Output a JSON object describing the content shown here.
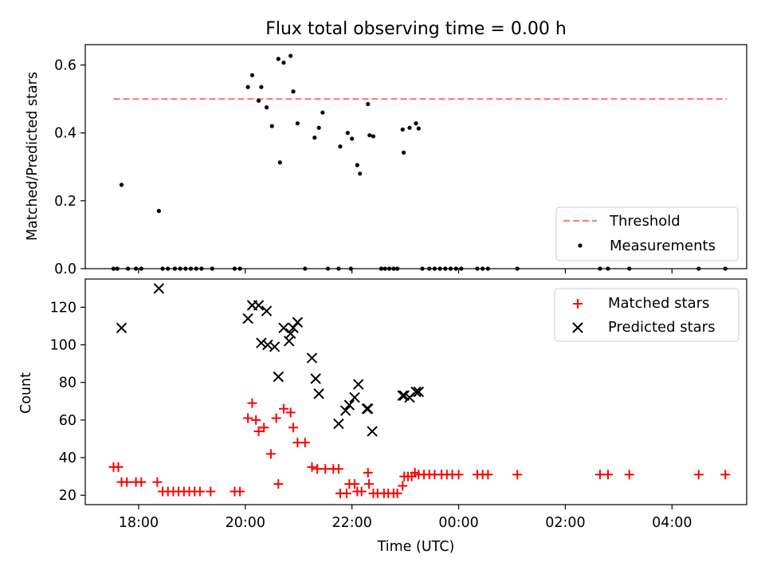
{
  "chart_data": [
    {
      "type": "scatter",
      "title": "Flux total observing time = 0.00 h",
      "ylabel": "Matched/Predicted stars",
      "xlabel": "",
      "x_unit": "hours since 00:00 UTC of first night (values > 24 are after midnight)",
      "ylim": [
        0,
        0.66
      ],
      "yticks": [
        "0.0",
        "0.2",
        "0.4",
        "0.6"
      ],
      "xlim": [
        17.0,
        29.4
      ],
      "xtick_values": [
        18,
        20,
        22,
        24,
        26,
        28
      ],
      "xtick_labels": [
        "18:00",
        "20:00",
        "22:00",
        "00:00",
        "02:00",
        "04:00"
      ],
      "grid": false,
      "legend_position": "lower right",
      "threshold": {
        "name": "Threshold",
        "value": 0.5,
        "x_range": [
          17.53,
          29.03
        ],
        "color": "#ff7f7f"
      },
      "series": [
        {
          "name": "Measurements",
          "color": "#000000",
          "points": [
            [
              17.53,
              0
            ],
            [
              17.6,
              0
            ],
            [
              17.68,
              0.247
            ],
            [
              17.8,
              0
            ],
            [
              17.95,
              0
            ],
            [
              18.05,
              0
            ],
            [
              18.38,
              0.17
            ],
            [
              18.45,
              0
            ],
            [
              18.55,
              0
            ],
            [
              18.68,
              0
            ],
            [
              18.78,
              0
            ],
            [
              18.88,
              0
            ],
            [
              18.98,
              0
            ],
            [
              19.08,
              0
            ],
            [
              19.18,
              0
            ],
            [
              19.38,
              0
            ],
            [
              19.8,
              0
            ],
            [
              19.9,
              0
            ],
            [
              20.05,
              0.535
            ],
            [
              20.13,
              0.57
            ],
            [
              20.25,
              0.495
            ],
            [
              20.3,
              0.535
            ],
            [
              20.4,
              0.475
            ],
            [
              20.5,
              0.42
            ],
            [
              20.62,
              0.618
            ],
            [
              20.65,
              0.313
            ],
            [
              20.72,
              0.607
            ],
            [
              20.85,
              0.627
            ],
            [
              20.9,
              0.522
            ],
            [
              20.98,
              0.428
            ],
            [
              21.12,
              0
            ],
            [
              21.3,
              0.386
            ],
            [
              21.38,
              0.415
            ],
            [
              21.45,
              0.46
            ],
            [
              21.55,
              0
            ],
            [
              21.75,
              0
            ],
            [
              21.78,
              0.36
            ],
            [
              21.92,
              0.4
            ],
            [
              21.98,
              0
            ],
            [
              22.0,
              0.383
            ],
            [
              22.1,
              0.305
            ],
            [
              22.15,
              0.28
            ],
            [
              22.3,
              0.485
            ],
            [
              22.33,
              0.393
            ],
            [
              22.4,
              0.39
            ],
            [
              22.55,
              0
            ],
            [
              22.62,
              0
            ],
            [
              22.7,
              0
            ],
            [
              22.78,
              0
            ],
            [
              22.85,
              0
            ],
            [
              22.95,
              0.41
            ],
            [
              22.97,
              0.342
            ],
            [
              23.08,
              0.415
            ],
            [
              23.2,
              0.428
            ],
            [
              23.25,
              0.413
            ],
            [
              23.32,
              0
            ],
            [
              23.45,
              0
            ],
            [
              23.55,
              0
            ],
            [
              23.65,
              0
            ],
            [
              23.75,
              0
            ],
            [
              23.85,
              0
            ],
            [
              23.95,
              0
            ],
            [
              24.05,
              0
            ],
            [
              24.35,
              0
            ],
            [
              24.45,
              0
            ],
            [
              24.55,
              0
            ],
            [
              25.1,
              0
            ],
            [
              26.65,
              0
            ],
            [
              26.8,
              0
            ],
            [
              27.2,
              0
            ],
            [
              28.5,
              0
            ],
            [
              29.0,
              0
            ]
          ]
        }
      ]
    },
    {
      "type": "scatter",
      "title": "",
      "ylabel": "Count",
      "xlabel": "Time (UTC)",
      "ylim": [
        15,
        135
      ],
      "yticks": [
        "20",
        "40",
        "60",
        "80",
        "100",
        "120"
      ],
      "xlim": [
        17.0,
        29.4
      ],
      "xtick_values": [
        18,
        20,
        22,
        24,
        26,
        28
      ],
      "xtick_labels": [
        "18:00",
        "20:00",
        "22:00",
        "00:00",
        "02:00",
        "04:00"
      ],
      "grid": false,
      "legend_position": "upper right",
      "series": [
        {
          "name": "Matched stars",
          "color": "#ff0000",
          "marker": "plus",
          "points": [
            [
              17.53,
              35
            ],
            [
              17.62,
              35
            ],
            [
              17.68,
              27
            ],
            [
              17.78,
              27
            ],
            [
              17.95,
              27
            ],
            [
              18.05,
              27
            ],
            [
              18.35,
              27
            ],
            [
              18.45,
              22
            ],
            [
              18.55,
              22
            ],
            [
              18.65,
              22
            ],
            [
              18.75,
              22
            ],
            [
              18.85,
              22
            ],
            [
              18.95,
              22
            ],
            [
              19.05,
              22
            ],
            [
              19.15,
              22
            ],
            [
              19.35,
              22
            ],
            [
              19.8,
              22
            ],
            [
              19.9,
              22
            ],
            [
              20.05,
              61
            ],
            [
              20.13,
              69
            ],
            [
              20.2,
              60
            ],
            [
              20.25,
              54
            ],
            [
              20.35,
              56
            ],
            [
              20.48,
              42
            ],
            [
              20.58,
              61
            ],
            [
              20.62,
              26
            ],
            [
              20.72,
              66
            ],
            [
              20.85,
              64
            ],
            [
              20.9,
              56
            ],
            [
              20.98,
              48
            ],
            [
              21.12,
              48
            ],
            [
              21.25,
              35
            ],
            [
              21.35,
              34
            ],
            [
              21.5,
              34
            ],
            [
              21.65,
              34
            ],
            [
              21.75,
              34
            ],
            [
              21.78,
              21
            ],
            [
              21.9,
              21
            ],
            [
              21.95,
              26
            ],
            [
              22.05,
              26
            ],
            [
              22.1,
              22
            ],
            [
              22.18,
              22
            ],
            [
              22.3,
              32
            ],
            [
              22.32,
              26
            ],
            [
              22.4,
              21
            ],
            [
              22.48,
              21
            ],
            [
              22.6,
              21
            ],
            [
              22.68,
              21
            ],
            [
              22.78,
              21
            ],
            [
              22.85,
              21
            ],
            [
              22.95,
              25
            ],
            [
              22.98,
              30
            ],
            [
              23.05,
              30
            ],
            [
              23.12,
              30
            ],
            [
              23.18,
              32
            ],
            [
              23.25,
              31
            ],
            [
              23.35,
              31
            ],
            [
              23.45,
              31
            ],
            [
              23.55,
              31
            ],
            [
              23.68,
              31
            ],
            [
              23.78,
              31
            ],
            [
              23.88,
              31
            ],
            [
              24.0,
              31
            ],
            [
              24.35,
              31
            ],
            [
              24.45,
              31
            ],
            [
              24.55,
              31
            ],
            [
              25.1,
              31
            ],
            [
              26.65,
              31
            ],
            [
              26.8,
              31
            ],
            [
              27.2,
              31
            ],
            [
              28.5,
              31
            ],
            [
              29.0,
              31
            ]
          ]
        },
        {
          "name": "Predicted stars",
          "color": "#000000",
          "marker": "x",
          "points": [
            [
              17.68,
              109
            ],
            [
              18.38,
              130
            ],
            [
              20.05,
              114
            ],
            [
              20.13,
              121
            ],
            [
              20.25,
              121
            ],
            [
              20.3,
              101
            ],
            [
              20.4,
              118
            ],
            [
              20.42,
              100
            ],
            [
              20.55,
              99
            ],
            [
              20.62,
              83
            ],
            [
              20.72,
              109
            ],
            [
              20.82,
              102
            ],
            [
              20.85,
              106
            ],
            [
              20.9,
              109
            ],
            [
              20.98,
              112
            ],
            [
              21.25,
              93
            ],
            [
              21.32,
              82
            ],
            [
              21.38,
              74
            ],
            [
              21.75,
              58
            ],
            [
              21.88,
              65
            ],
            [
              21.95,
              68
            ],
            [
              22.05,
              72
            ],
            [
              22.12,
              79
            ],
            [
              22.28,
              66
            ],
            [
              22.3,
              66
            ],
            [
              22.38,
              54
            ],
            [
              22.95,
              73
            ],
            [
              22.98,
              73
            ],
            [
              23.08,
              72
            ],
            [
              23.2,
              75
            ],
            [
              23.25,
              75
            ]
          ]
        }
      ]
    }
  ]
}
